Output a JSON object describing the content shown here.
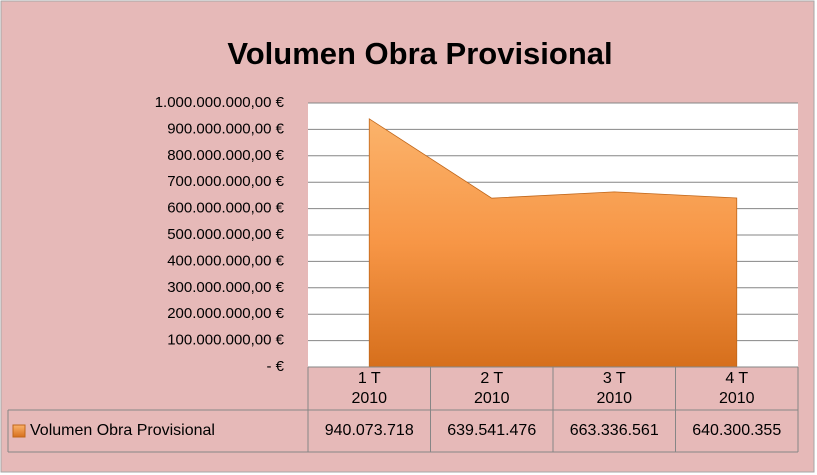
{
  "chart_data": {
    "type": "area",
    "title": "Volumen Obra Provisional",
    "categories": [
      [
        "1 T",
        "2010"
      ],
      [
        "2 T",
        "2010"
      ],
      [
        "3 T",
        "2010"
      ],
      [
        "4 T",
        "2010"
      ]
    ],
    "series": [
      {
        "name": "Volumen Obra Provisional",
        "color": "#f79646",
        "values": [
          940073718,
          639541476,
          663336561,
          640300355
        ],
        "value_labels": [
          "940.073.718",
          "639.541.476",
          "663.336.561",
          "640.300.355"
        ]
      }
    ],
    "ylim": [
      0,
      1000000000
    ],
    "yticks": [
      {
        "value": 0,
        "label": "-   €"
      },
      {
        "value": 100000000,
        "label": "100.000.000,00 €"
      },
      {
        "value": 200000000,
        "label": "200.000.000,00 €"
      },
      {
        "value": 300000000,
        "label": "300.000.000,00 €"
      },
      {
        "value": 400000000,
        "label": "400.000.000,00 €"
      },
      {
        "value": 500000000,
        "label": "500.000.000,00 €"
      },
      {
        "value": 600000000,
        "label": "600.000.000,00 €"
      },
      {
        "value": 700000000,
        "label": "700.000.000,00 €"
      },
      {
        "value": 800000000,
        "label": "800.000.000,00 €"
      },
      {
        "value": 900000000,
        "label": "900.000.000,00 €"
      },
      {
        "value": 1000000000,
        "label": "1.000.000.000,00 €"
      }
    ],
    "grid": true
  }
}
